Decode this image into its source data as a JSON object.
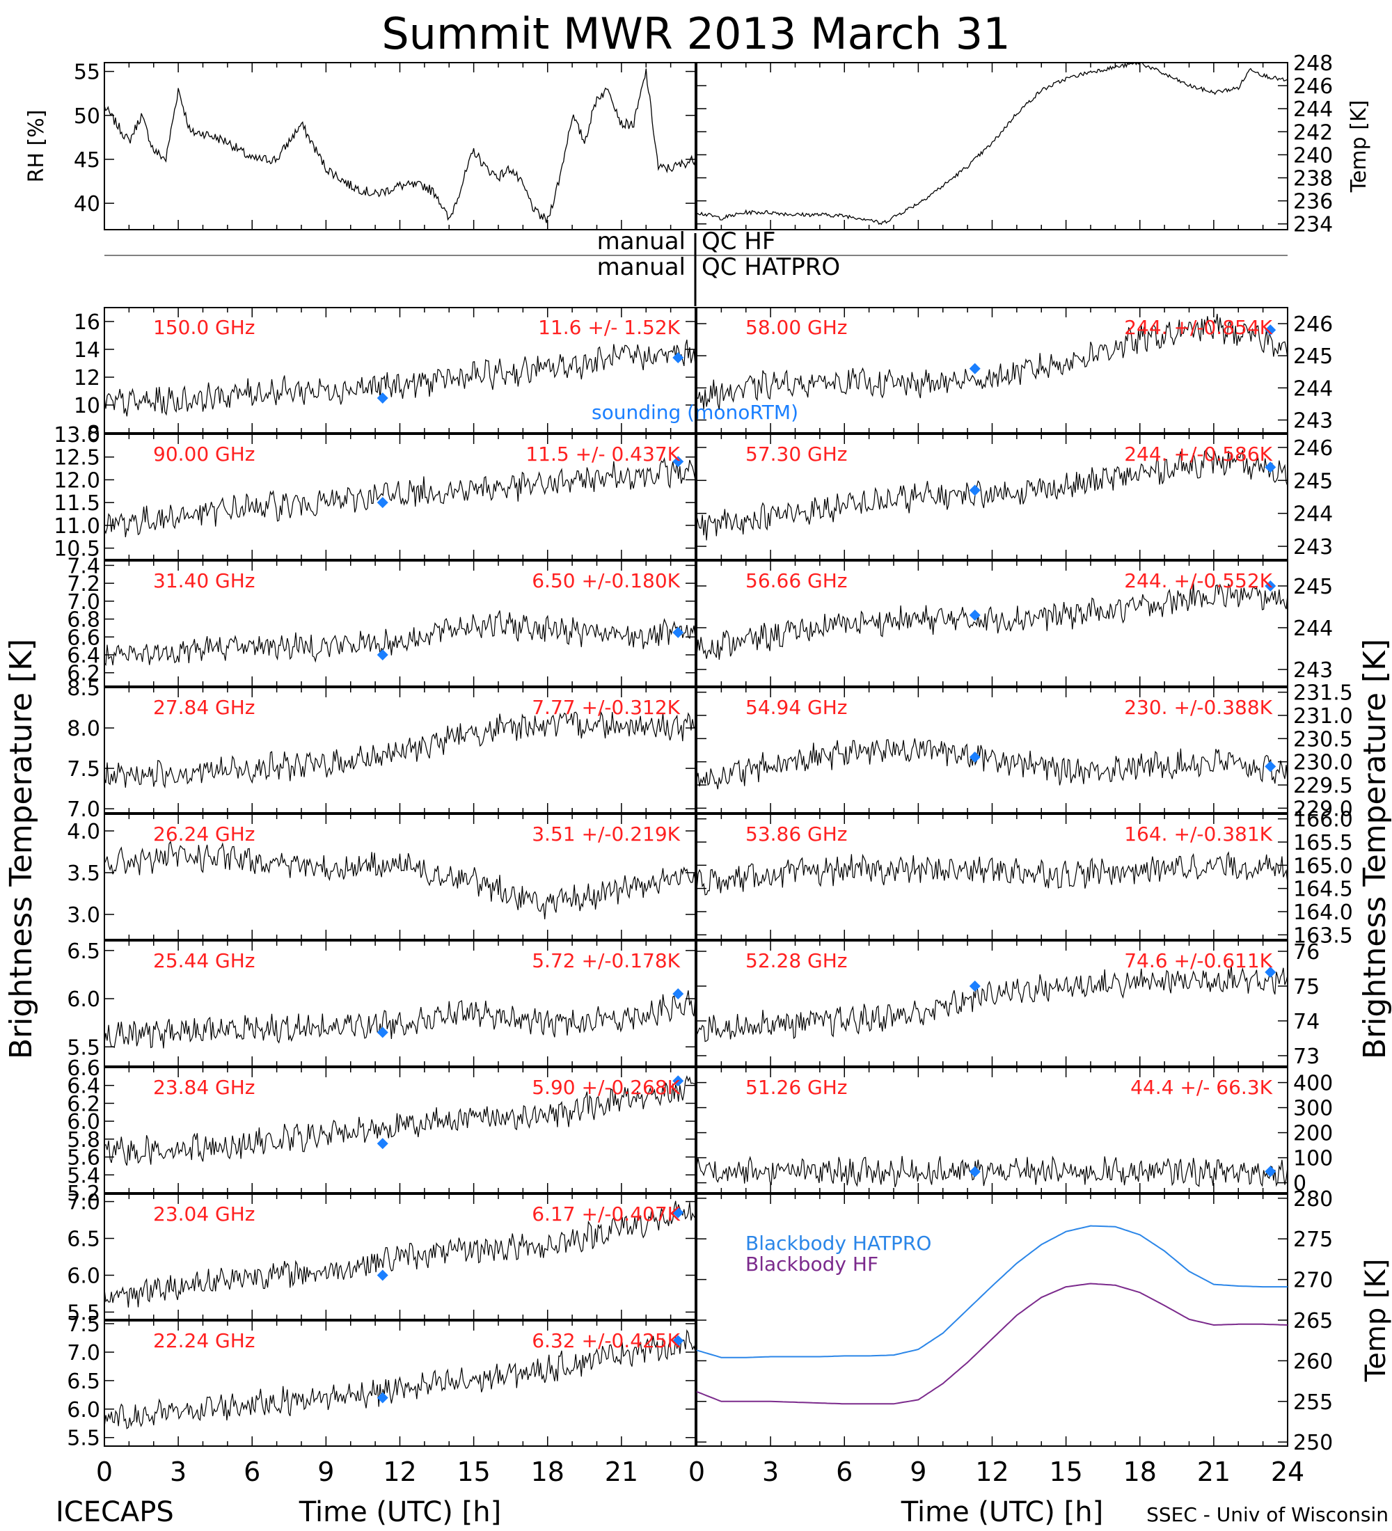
{
  "title": "Summit MWR 2013 March 31",
  "footer": {
    "left": "ICECAPS",
    "right": "SSEC - Univ of Wisconsin",
    "x_axis_label": "Time (UTC) [h]"
  },
  "y_axis_labels": {
    "left_main": "Brightness Temperature [K]",
    "right_main": "Brightness Temperature [K]"
  },
  "qc": {
    "hf_left": "manual",
    "hf_right": "QC HF",
    "hatpro_left": "manual",
    "hatpro_right": "QC HATPRO"
  },
  "colors": {
    "channel_label": "#ff2020",
    "sounding": "#1a7fff",
    "blackbody_hatpro": "#2b86e8",
    "blackbody_hf": "#7b2a8c",
    "trace": "#000000"
  },
  "chart_data": [
    {
      "id": "rh",
      "type": "line",
      "xlabel": "",
      "ylabel": "RH [%]",
      "xlim": [
        0,
        24
      ],
      "ylim": [
        37,
        56
      ],
      "yticks": [
        40,
        45,
        50,
        55
      ],
      "x": [
        0,
        1,
        1.5,
        2,
        2.5,
        3,
        3.5,
        4,
        5,
        6,
        7,
        8,
        9,
        10,
        11,
        12,
        13,
        13.5,
        14,
        14.5,
        15,
        15.5,
        16,
        16.5,
        17,
        17.5,
        18,
        18.5,
        19,
        19.5,
        20,
        20.5,
        21,
        21.5,
        22,
        22.5,
        23,
        24
      ],
      "y": [
        51,
        47,
        50,
        46,
        45,
        53,
        48,
        48,
        47,
        45,
        45,
        49,
        44,
        42,
        41,
        42,
        42,
        41,
        38,
        42,
        46,
        44,
        43,
        44,
        42,
        39,
        38,
        43,
        50,
        47,
        52,
        53,
        49,
        49,
        55,
        44,
        44,
        45
      ]
    },
    {
      "id": "temp",
      "type": "line",
      "xlabel": "",
      "ylabel": "Temp [K]",
      "xlim": [
        0,
        24
      ],
      "ylim": [
        233.5,
        248
      ],
      "yticks": [
        234,
        236,
        238,
        240,
        242,
        244,
        246,
        248
      ],
      "x": [
        0,
        1,
        2,
        3,
        4,
        5,
        6,
        7,
        7.5,
        8,
        9,
        10,
        11,
        12,
        13,
        14,
        15,
        16,
        17,
        18,
        19,
        20,
        21,
        22,
        22.5,
        23,
        24
      ],
      "y": [
        235,
        234.5,
        235,
        235,
        234.8,
        234.8,
        234.7,
        234.4,
        234,
        234.6,
        235.8,
        237.3,
        239,
        241,
        243.6,
        245.6,
        246.6,
        247.2,
        247.6,
        248,
        247,
        246,
        245.4,
        245.8,
        247.5,
        246.9,
        246.4
      ]
    },
    {
      "id": "bt150",
      "type": "line",
      "channel": "150.0 GHz",
      "stats": "11.6 +/- 1.52K",
      "ylim": [
        8,
        17
      ],
      "yticks": [
        8,
        10,
        12,
        14,
        16
      ],
      "x": [
        0,
        3,
        6,
        9,
        12,
        15,
        18,
        21,
        24
      ],
      "values": [
        10.1,
        10.3,
        10.9,
        11.1,
        11.4,
        12.1,
        12.6,
        13.4,
        13.7
      ],
      "sounding": [
        [
          11.3,
          10.5
        ],
        [
          23.3,
          13.4
        ]
      ],
      "note": "sounding (monoRTM)"
    },
    {
      "id": "bt90",
      "type": "line",
      "channel": "90.00 GHz",
      "stats": "11.5 +/- 0.437K",
      "ylim": [
        10.25,
        13
      ],
      "yticks": [
        10.5,
        11.0,
        11.5,
        12.0,
        12.5,
        13.0
      ],
      "x": [
        0,
        3,
        6,
        9,
        12,
        15,
        18,
        21,
        24
      ],
      "values": [
        11.0,
        11.2,
        11.4,
        11.5,
        11.7,
        11.8,
        11.9,
        12.1,
        12.2
      ],
      "sounding": [
        [
          11.3,
          11.5
        ],
        [
          23.3,
          12.4
        ]
      ]
    },
    {
      "id": "bt3140",
      "type": "line",
      "channel": "31.40 GHz",
      "stats": "6.50 +/-0.180K",
      "ylim": [
        6.05,
        7.45
      ],
      "yticks": [
        6.2,
        6.4,
        6.6,
        6.8,
        7.0,
        7.2,
        7.4
      ],
      "x": [
        0,
        3,
        6,
        9,
        12,
        15,
        18,
        21,
        24
      ],
      "values": [
        6.35,
        6.45,
        6.5,
        6.5,
        6.55,
        6.75,
        6.7,
        6.6,
        6.65
      ],
      "sounding": [
        [
          11.3,
          6.4
        ],
        [
          23.3,
          6.65
        ]
      ]
    },
    {
      "id": "bt2784",
      "type": "line",
      "channel": "27.84 GHz",
      "stats": "7.77 +/-0.312K",
      "ylim": [
        6.95,
        8.5
      ],
      "yticks": [
        7.0,
        7.5,
        8.0,
        8.5
      ],
      "x": [
        0,
        3,
        6,
        9,
        12,
        15,
        18,
        21,
        24
      ],
      "values": [
        7.4,
        7.45,
        7.5,
        7.55,
        7.7,
        7.95,
        8.05,
        8.05,
        8.0
      ]
    },
    {
      "id": "bt2624",
      "type": "line",
      "channel": "26.24 GHz",
      "stats": "3.51 +/-0.219K",
      "ylim": [
        2.7,
        4.2
      ],
      "yticks": [
        3.0,
        3.5,
        4.0
      ],
      "x": [
        0,
        3,
        6,
        9,
        12,
        15,
        18,
        21,
        24
      ],
      "values": [
        3.6,
        3.7,
        3.65,
        3.55,
        3.6,
        3.4,
        3.1,
        3.3,
        3.5
      ]
    },
    {
      "id": "bt2544",
      "type": "line",
      "channel": "25.44 GHz",
      "stats": "5.72 +/-0.178K",
      "ylim": [
        5.3,
        6.6
      ],
      "yticks": [
        5.5,
        6.0,
        6.5
      ],
      "x": [
        0,
        3,
        6,
        9,
        12,
        15,
        18,
        21,
        24
      ],
      "values": [
        5.6,
        5.65,
        5.7,
        5.7,
        5.75,
        5.85,
        5.75,
        5.8,
        5.95
      ],
      "sounding": [
        [
          11.3,
          5.65
        ],
        [
          23.3,
          6.05
        ]
      ]
    },
    {
      "id": "bt2384",
      "type": "line",
      "channel": "23.84 GHz",
      "stats": "5.90 +/-0.268K",
      "ylim": [
        5.2,
        6.6
      ],
      "yticks": [
        5.2,
        5.4,
        5.6,
        5.8,
        6.0,
        6.2,
        6.4,
        6.6
      ],
      "x": [
        0,
        3,
        6,
        9,
        12,
        15,
        18,
        21,
        24
      ],
      "values": [
        5.65,
        5.7,
        5.75,
        5.85,
        5.95,
        6.05,
        6.05,
        6.25,
        6.35
      ],
      "sounding": [
        [
          11.3,
          5.75
        ],
        [
          23.3,
          6.45
        ]
      ]
    },
    {
      "id": "bt2304",
      "type": "line",
      "channel": "23.04 GHz",
      "stats": "6.17 +/-0.407K",
      "ylim": [
        5.4,
        7.1
      ],
      "yticks": [
        5.5,
        6.0,
        6.5,
        7.0
      ],
      "x": [
        0,
        3,
        6,
        9,
        12,
        15,
        18,
        21,
        24
      ],
      "values": [
        5.7,
        5.85,
        6.0,
        6.05,
        6.25,
        6.35,
        6.4,
        6.65,
        6.85
      ],
      "sounding": [
        [
          11.3,
          6.0
        ],
        [
          23.3,
          6.85
        ]
      ]
    },
    {
      "id": "bt2224",
      "type": "line",
      "channel": "22.24 GHz",
      "stats": "6.32 +/-0.425K",
      "ylim": [
        5.35,
        7.55
      ],
      "yticks": [
        5.5,
        6.0,
        6.5,
        7.0,
        7.5
      ],
      "x": [
        0,
        3,
        6,
        9,
        12,
        15,
        18,
        21,
        24
      ],
      "values": [
        5.8,
        5.95,
        6.1,
        6.2,
        6.35,
        6.5,
        6.7,
        7.0,
        7.15
      ],
      "sounding": [
        [
          11.3,
          6.2
        ],
        [
          23.3,
          7.2
        ]
      ]
    },
    {
      "id": "bt5800",
      "type": "line",
      "channel": "58.00 GHz",
      "stats": "244. +/-0.854K",
      "ylim": [
        242.6,
        246.5
      ],
      "yticks": [
        243,
        244,
        245,
        246
      ],
      "x": [
        0,
        3,
        6,
        9,
        12,
        15,
        18,
        21,
        24
      ],
      "values": [
        243.7,
        244.1,
        244.2,
        244.1,
        244.3,
        244.8,
        245.5,
        245.9,
        245.3
      ],
      "sounding": [
        [
          11.3,
          244.6
        ],
        [
          23.3,
          245.8
        ]
      ]
    },
    {
      "id": "bt5730",
      "type": "line",
      "channel": "57.30 GHz",
      "stats": "244. +/-0.586K",
      "ylim": [
        242.6,
        246.4
      ],
      "yticks": [
        243,
        244,
        245,
        246
      ],
      "x": [
        0,
        3,
        6,
        9,
        12,
        15,
        18,
        21,
        24
      ],
      "values": [
        243.6,
        243.9,
        244.2,
        244.5,
        244.6,
        244.8,
        245.2,
        245.6,
        245.2
      ],
      "sounding": [
        [
          11.3,
          244.7
        ],
        [
          23.3,
          245.4
        ]
      ]
    },
    {
      "id": "bt5666",
      "type": "line",
      "channel": "56.66 GHz",
      "stats": "244. +/-0.552K",
      "ylim": [
        242.6,
        245.6
      ],
      "yticks": [
        243,
        244,
        245
      ],
      "x": [
        0,
        3,
        6,
        9,
        12,
        15,
        18,
        21,
        24
      ],
      "values": [
        243.5,
        243.8,
        244.1,
        244.2,
        244.2,
        244.3,
        244.5,
        244.8,
        244.7
      ],
      "sounding": [
        [
          11.3,
          244.3
        ],
        [
          23.3,
          245.0
        ]
      ]
    },
    {
      "id": "bt5494",
      "type": "line",
      "channel": "54.94 GHz",
      "stats": "230. +/-0.388K",
      "ylim": [
        228.9,
        231.6
      ],
      "yticks": [
        229.0,
        229.5,
        230.0,
        230.5,
        231.0,
        231.5
      ],
      "x": [
        0,
        3,
        6,
        9,
        12,
        15,
        18,
        21,
        24
      ],
      "values": [
        229.6,
        229.9,
        230.2,
        230.3,
        230.1,
        229.8,
        229.9,
        230.0,
        229.8
      ],
      "sounding": [
        [
          11.3,
          230.1
        ],
        [
          23.3,
          229.9
        ]
      ]
    },
    {
      "id": "bt5386",
      "type": "line",
      "channel": "53.86 GHz",
      "stats": "164. +/-0.381K",
      "ylim": [
        163.4,
        166.1
      ],
      "yticks": [
        163.5,
        164.0,
        164.5,
        165.0,
        165.5,
        166.0
      ],
      "x": [
        0,
        3,
        6,
        9,
        12,
        15,
        18,
        21,
        24
      ],
      "values": [
        164.6,
        164.8,
        164.9,
        164.9,
        164.9,
        164.8,
        164.9,
        165.0,
        164.9
      ]
    },
    {
      "id": "bt5228",
      "type": "line",
      "channel": "52.28 GHz",
      "stats": "74.6 +/-0.611K",
      "ylim": [
        72.7,
        76.3
      ],
      "yticks": [
        73,
        74,
        75,
        76
      ],
      "x": [
        0,
        3,
        6,
        9,
        12,
        15,
        18,
        21,
        24
      ],
      "values": [
        73.8,
        73.9,
        74.0,
        74.2,
        74.8,
        75.0,
        75.1,
        75.2,
        75.2
      ],
      "sounding": [
        [
          11.3,
          75.0
        ],
        [
          23.3,
          75.4
        ]
      ]
    },
    {
      "id": "bt5126",
      "type": "line",
      "channel": "51.26 GHz",
      "stats": "44.4 +/- 66.3K",
      "ylim": [
        -40,
        460
      ],
      "yticks": [
        0,
        100,
        200,
        300,
        400
      ],
      "x": [
        0,
        3,
        6,
        9,
        12,
        15,
        18,
        21,
        24
      ],
      "values": [
        44,
        44,
        43,
        44,
        44,
        44,
        45,
        44,
        44
      ],
      "sounding": [
        [
          11.3,
          44
        ],
        [
          23.3,
          45
        ]
      ]
    },
    {
      "id": "blackbody",
      "type": "line",
      "ylabel": "Temp [K]",
      "xlabel": "Time (UTC) [h]",
      "xlim": [
        0,
        24
      ],
      "ylim": [
        249.5,
        280.5
      ],
      "yticks": [
        250,
        255,
        260,
        265,
        270,
        275,
        280
      ],
      "x": [
        0,
        1,
        2,
        3,
        4,
        5,
        6,
        7,
        8,
        9,
        10,
        11,
        12,
        13,
        14,
        15,
        16,
        17,
        18,
        19,
        20,
        21,
        22,
        23,
        24
      ],
      "series": [
        {
          "name": "Blackbody HATPRO",
          "values": [
            261.3,
            260.4,
            260.4,
            260.5,
            260.5,
            260.5,
            260.6,
            260.6,
            260.7,
            261.4,
            263.4,
            266.3,
            269.2,
            272.0,
            274.3,
            275.9,
            276.6,
            276.5,
            275.5,
            273.5,
            271.0,
            269.4,
            269.2,
            269.1,
            269.1
          ]
        },
        {
          "name": "Blackbody HF",
          "values": [
            256.2,
            255.0,
            255.0,
            255.0,
            254.9,
            254.8,
            254.7,
            254.7,
            254.7,
            255.2,
            257.2,
            259.8,
            262.7,
            265.6,
            267.8,
            269.1,
            269.5,
            269.3,
            268.4,
            266.8,
            265.1,
            264.4,
            264.5,
            264.5,
            264.4
          ]
        }
      ]
    }
  ]
}
